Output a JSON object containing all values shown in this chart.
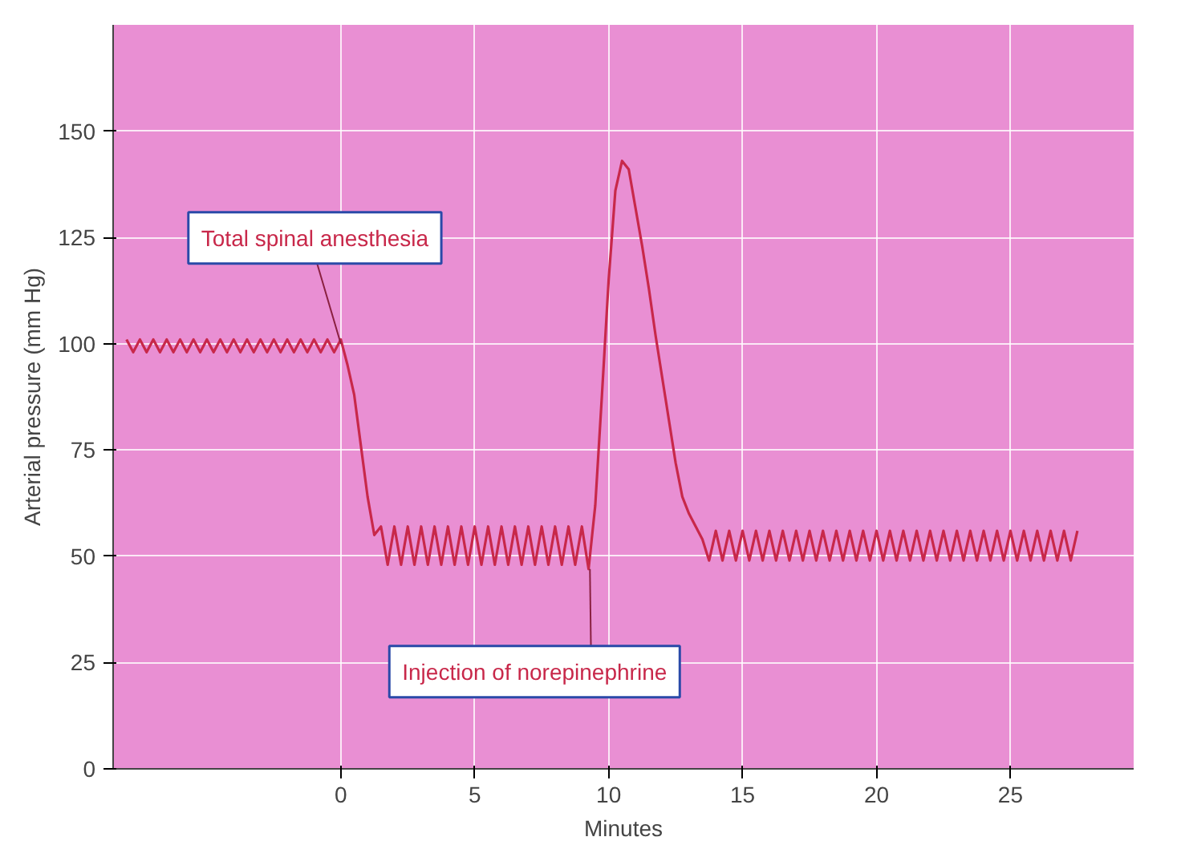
{
  "chart_data": {
    "type": "line",
    "xlabel": "Minutes",
    "ylabel": "Arterial pressure (mm Hg)",
    "xlim": [
      -8.5,
      29.6
    ],
    "ylim": [
      0,
      175
    ],
    "xticks": [
      0,
      5,
      10,
      15,
      20,
      25
    ],
    "yticks": [
      0,
      25,
      50,
      75,
      100,
      125,
      150
    ],
    "grid": true,
    "marker": "none",
    "line_style": "solid",
    "series": [
      {
        "color": "#c8284a",
        "x": [
          -8,
          -7.75,
          -7.5,
          -7.25,
          -7,
          -6.75,
          -6.5,
          -6.25,
          -6,
          -5.75,
          -5.5,
          -5.25,
          -5,
          -4.75,
          -4.5,
          -4.25,
          -4,
          -3.75,
          -3.5,
          -3.25,
          -3,
          -2.75,
          -2.5,
          -2.25,
          -2,
          -1.75,
          -1.5,
          -1.25,
          -1,
          -0.75,
          -0.5,
          -0.25,
          0,
          0.25,
          0.5,
          0.75,
          1,
          1.25,
          1.5,
          1.75,
          2,
          2.25,
          2.5,
          2.75,
          3,
          3.25,
          3.5,
          3.75,
          4,
          4.25,
          4.5,
          4.75,
          5,
          5.25,
          5.5,
          5.75,
          6,
          6.25,
          6.5,
          6.75,
          7,
          7.25,
          7.5,
          7.75,
          8,
          8.25,
          8.5,
          8.75,
          9,
          9.25,
          9.5,
          9.75,
          10,
          10.25,
          10.5,
          10.75,
          11,
          11.25,
          11.5,
          11.75,
          12,
          12.25,
          12.5,
          12.75,
          13,
          13.25,
          13.5,
          13.75,
          14,
          14.25,
          14.5,
          14.75,
          15,
          15.25,
          15.5,
          15.75,
          16,
          16.25,
          16.5,
          16.75,
          17,
          17.25,
          17.5,
          17.75,
          18,
          18.25,
          18.5,
          18.75,
          19,
          19.25,
          19.5,
          19.75,
          20,
          20.25,
          20.5,
          20.75,
          21,
          21.25,
          21.5,
          21.75,
          22,
          22.25,
          22.5,
          22.75,
          23,
          23.25,
          23.5,
          23.75,
          24,
          24.25,
          24.5,
          24.75,
          25,
          25.25,
          25.5,
          25.75,
          26,
          26.25,
          26.5,
          26.75,
          27,
          27.25,
          27.5
        ],
        "values": [
          101,
          98,
          101,
          98,
          101,
          98,
          101,
          98,
          101,
          98,
          101,
          98,
          101,
          98,
          101,
          98,
          101,
          98,
          101,
          98,
          101,
          98,
          101,
          98,
          101,
          98,
          101,
          98,
          101,
          98,
          101,
          98,
          101,
          95,
          88,
          76,
          64,
          55,
          57,
          48,
          57,
          48,
          57,
          48,
          57,
          48,
          57,
          48,
          57,
          48,
          57,
          48,
          57,
          48,
          57,
          48,
          57,
          48,
          57,
          48,
          57,
          48,
          57,
          48,
          57,
          48,
          57,
          48,
          57,
          47,
          62,
          88,
          115,
          136,
          143,
          141,
          132,
          123,
          113,
          102,
          92,
          82,
          72,
          64,
          60,
          57,
          54,
          49,
          56,
          49,
          56,
          49,
          56,
          49,
          56,
          49,
          56,
          49,
          56,
          49,
          56,
          49,
          56,
          49,
          56,
          49,
          56,
          49,
          56,
          49,
          56,
          49,
          56,
          49,
          56,
          49,
          56,
          49,
          56,
          49,
          56,
          49,
          56,
          49,
          56,
          49,
          56,
          49,
          56,
          49,
          56,
          49,
          56,
          49,
          56,
          49,
          56,
          49,
          56,
          49,
          56,
          49,
          56
        ]
      }
    ],
    "annotations": [
      {
        "text": "Total spinal anesthesia",
        "x": 0,
        "y": 100
      },
      {
        "text": "Injection of norepinephrine",
        "x": 9.3,
        "y": 47
      }
    ]
  }
}
